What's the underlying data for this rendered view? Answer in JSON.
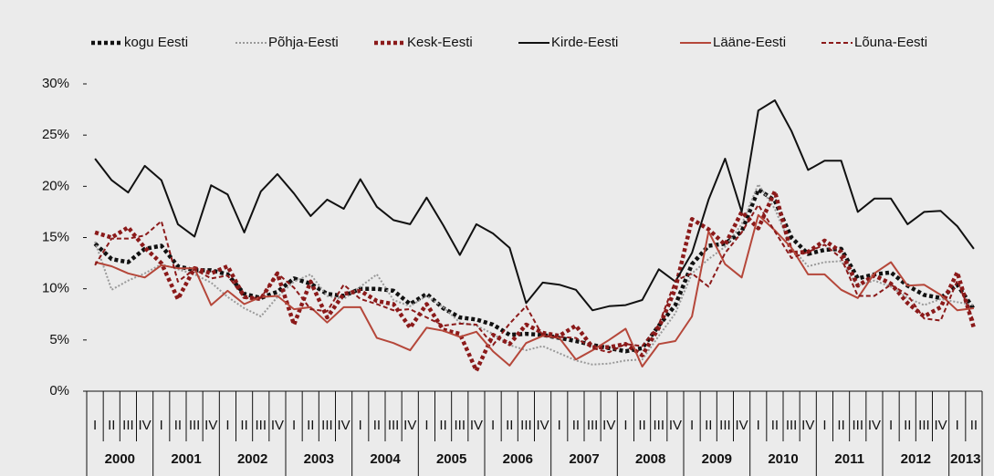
{
  "chart_data": {
    "type": "line",
    "categories": [
      "I",
      "II",
      "III",
      "IV",
      "I",
      "II",
      "III",
      "IV",
      "I",
      "II",
      "III",
      "IV",
      "I",
      "II",
      "III",
      "IV",
      "I",
      "II",
      "III",
      "IV",
      "I",
      "II",
      "III",
      "IV",
      "I",
      "II",
      "III",
      "IV",
      "I",
      "II",
      "III",
      "IV",
      "I",
      "II",
      "III",
      "IV",
      "I",
      "II",
      "III",
      "IV",
      "I",
      "II",
      "III",
      "IV",
      "I",
      "II",
      "III",
      "IV",
      "I",
      "II",
      "III",
      "IV",
      "I",
      "II"
    ],
    "years": [
      "2000",
      "2001",
      "2002",
      "2003",
      "2004",
      "2005",
      "2006",
      "2007",
      "2008",
      "2009",
      "2010",
      "2011",
      "2012",
      "2013"
    ],
    "ylim": [
      0,
      30
    ],
    "yticks": [
      {
        "value": 0,
        "label": "0%"
      },
      {
        "value": 5,
        "label": "5%"
      },
      {
        "value": 10,
        "label": "10%"
      },
      {
        "value": 15,
        "label": "15%"
      },
      {
        "value": 20,
        "label": "20%"
      },
      {
        "value": 25,
        "label": "25%"
      },
      {
        "value": 30,
        "label": "30%"
      }
    ],
    "legend": "top",
    "series": [
      {
        "name": "kogu Eesti",
        "color": "#111111",
        "style": "dotted-bold",
        "values": [
          14.4,
          12.9,
          12.6,
          13.9,
          14.2,
          12.2,
          11.8,
          11.8,
          11.4,
          9.5,
          9.1,
          9.7,
          11.0,
          10.5,
          9.5,
          9.3,
          10.0,
          10.0,
          9.8,
          8.5,
          9.5,
          8.1,
          7.2,
          7.0,
          6.5,
          5.5,
          5.6,
          5.5,
          5.2,
          4.9,
          4.5,
          4.2,
          3.9,
          4.2,
          6.4,
          8.4,
          12.4,
          14.2,
          14.4,
          15.6,
          19.7,
          18.6,
          15.0,
          13.4,
          13.8,
          13.9,
          11.0,
          11.4,
          11.6,
          10.3,
          9.4,
          9.1,
          10.4,
          8.0
        ]
      },
      {
        "name": "Põhja-Eesti",
        "color": "#999999",
        "style": "dotted",
        "values": [
          14.6,
          9.9,
          10.8,
          11.5,
          12.4,
          11.9,
          11.4,
          10.6,
          9.2,
          8.1,
          7.3,
          9.2,
          10.7,
          11.4,
          9.3,
          9.0,
          10.2,
          11.4,
          8.9,
          8.3,
          9.3,
          8.2,
          6.7,
          6.4,
          5.6,
          4.5,
          4.0,
          4.4,
          3.7,
          3.0,
          2.6,
          2.7,
          3.0,
          3.1,
          5.4,
          7.6,
          11.5,
          12.9,
          14.1,
          16.3,
          20.2,
          17.8,
          14.0,
          12.2,
          12.6,
          12.7,
          10.3,
          10.8,
          10.2,
          9.1,
          8.4,
          9.0,
          8.7,
          8.4
        ]
      },
      {
        "name": "Kesk-Eesti",
        "color": "#8b1a1a",
        "style": "dotted-bold",
        "values": [
          15.5,
          15.0,
          16.0,
          14.0,
          12.5,
          9.0,
          12.0,
          11.5,
          12.2,
          9.2,
          9.0,
          11.5,
          6.5,
          10.7,
          7.2,
          9.5,
          9.8,
          8.8,
          8.5,
          6.2,
          8.5,
          6.0,
          5.6,
          2.0,
          5.5,
          4.6,
          6.5,
          5.7,
          5.4,
          6.4,
          4.3,
          4.3,
          4.6,
          3.5,
          6.2,
          10.0,
          16.8,
          15.8,
          14.3,
          17.5,
          15.9,
          19.5,
          13.5,
          13.6,
          14.7,
          13.6,
          10.3,
          11.3,
          10.5,
          8.6,
          7.3,
          8.2,
          11.6,
          6.2
        ]
      },
      {
        "name": "Kirde-Eesti",
        "color": "#111111",
        "style": "solid",
        "values": [
          22.7,
          20.6,
          19.4,
          22.0,
          20.6,
          16.3,
          15.1,
          20.1,
          19.2,
          15.5,
          19.5,
          21.2,
          19.3,
          17.1,
          18.7,
          17.8,
          20.7,
          18.0,
          16.7,
          16.3,
          18.9,
          16.2,
          13.3,
          16.3,
          15.4,
          14.0,
          8.6,
          10.6,
          10.4,
          9.9,
          7.9,
          8.3,
          8.4,
          8.9,
          11.9,
          10.7,
          13.5,
          18.7,
          22.7,
          17.5,
          27.4,
          28.4,
          25.4,
          21.6,
          22.5,
          22.5,
          17.5,
          18.8,
          18.8,
          16.3,
          17.5,
          17.6,
          16.1,
          13.9
        ]
      },
      {
        "name": "Lääne-Eesti",
        "color": "#b5473a",
        "style": "solid",
        "values": [
          12.6,
          12.2,
          11.5,
          11.1,
          12.3,
          12.0,
          12.0,
          8.4,
          9.8,
          8.5,
          9.2,
          9.3,
          8.0,
          8.2,
          6.7,
          8.2,
          8.2,
          5.2,
          4.7,
          4.0,
          6.2,
          5.9,
          5.3,
          5.8,
          3.9,
          2.5,
          4.7,
          5.4,
          5.2,
          3.1,
          4.0,
          5.0,
          6.1,
          2.4,
          4.6,
          4.9,
          7.3,
          15.6,
          12.4,
          11.1,
          17.2,
          15.7,
          14.0,
          11.4,
          11.4,
          9.9,
          9.1,
          11.5,
          12.6,
          10.3,
          10.4,
          9.4,
          7.9,
          8.1
        ]
      },
      {
        "name": "Lõuna-Eesti",
        "color": "#8b1a1a",
        "style": "dashed",
        "values": [
          12.3,
          14.9,
          14.9,
          15.2,
          16.6,
          10.7,
          11.9,
          11.0,
          11.3,
          9.1,
          9.1,
          11.5,
          10.1,
          8.0,
          7.8,
          10.4,
          9.0,
          8.5,
          7.9,
          8.0,
          7.2,
          6.4,
          6.6,
          6.5,
          4.5,
          6.6,
          8.3,
          5.4,
          5.3,
          5.2,
          4.2,
          3.8,
          4.6,
          4.4,
          6.5,
          10.8,
          11.5,
          10.2,
          13.5,
          15.5,
          18.2,
          15.6,
          13.0,
          13.6,
          14.3,
          13.0,
          9.3,
          9.3,
          10.4,
          9.4,
          7.1,
          6.9,
          10.8,
          6.8
        ]
      }
    ]
  }
}
